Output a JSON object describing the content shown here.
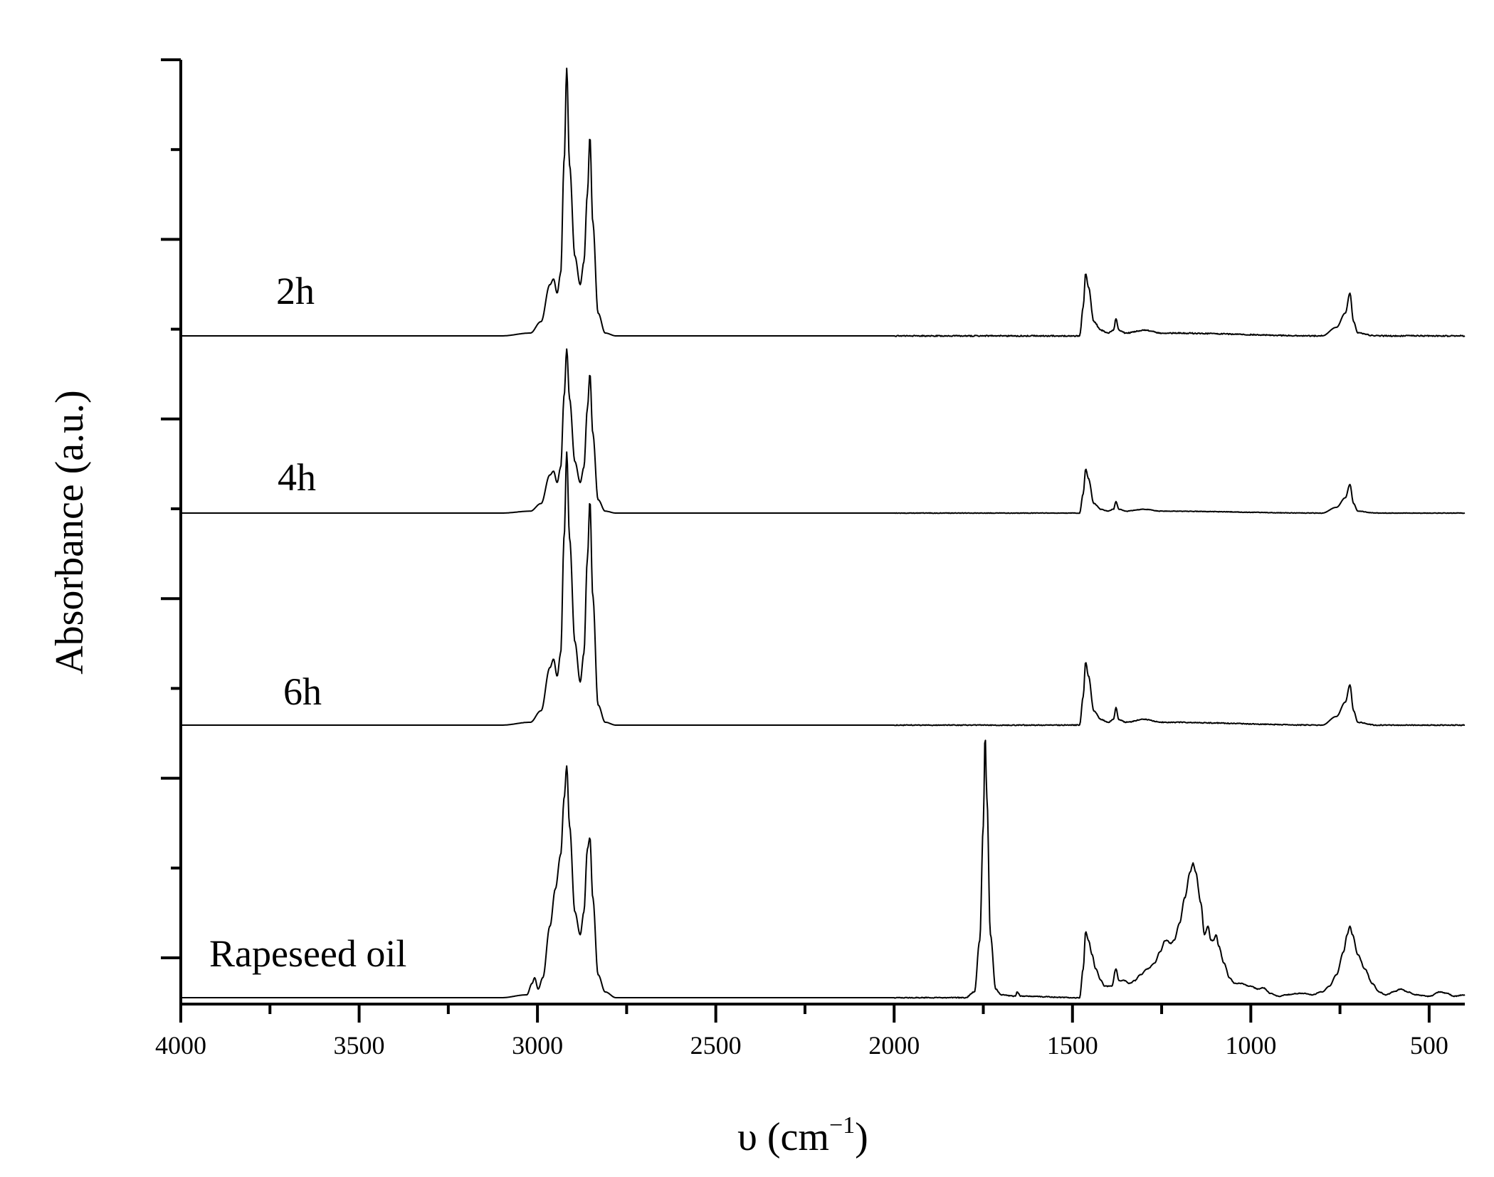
{
  "chart_data": {
    "type": "line",
    "title": "",
    "xlabel": "υ (cm",
    "xlabel_superscript": "−1",
    "xlabel_suffix": ")",
    "ylabel": "Absorbance (a.u.)",
    "xlim": [
      4000,
      400
    ],
    "x_reversed": true,
    "x_ticks": [
      4000,
      3500,
      3000,
      2500,
      2000,
      1500,
      1000,
      500
    ],
    "y_ticks_count": 11,
    "y_tick_labels_shown": false,
    "stacked_offset": true,
    "series": [
      {
        "name": "2h",
        "baseline": 0,
        "noise": 0.004,
        "points": [
          [
            4000,
            0
          ],
          [
            3100,
            0
          ],
          [
            3020,
            0.01
          ],
          [
            2990,
            0.05
          ],
          [
            2965,
            0.18
          ],
          [
            2955,
            0.2
          ],
          [
            2945,
            0.15
          ],
          [
            2935,
            0.22
          ],
          [
            2925,
            0.62
          ],
          [
            2918,
            0.94
          ],
          [
            2910,
            0.6
          ],
          [
            2895,
            0.28
          ],
          [
            2880,
            0.18
          ],
          [
            2870,
            0.26
          ],
          [
            2860,
            0.5
          ],
          [
            2853,
            0.7
          ],
          [
            2845,
            0.4
          ],
          [
            2830,
            0.08
          ],
          [
            2810,
            0.01
          ],
          [
            2780,
            0
          ],
          [
            1480,
            0
          ],
          [
            1470,
            0.1
          ],
          [
            1463,
            0.22
          ],
          [
            1455,
            0.17
          ],
          [
            1440,
            0.05
          ],
          [
            1420,
            0.02
          ],
          [
            1400,
            0.01
          ],
          [
            1385,
            0.02
          ],
          [
            1378,
            0.06
          ],
          [
            1370,
            0.02
          ],
          [
            1350,
            0.01
          ],
          [
            1300,
            0.02
          ],
          [
            1250,
            0.01
          ],
          [
            800,
            0
          ],
          [
            760,
            0.03
          ],
          [
            735,
            0.08
          ],
          [
            722,
            0.15
          ],
          [
            712,
            0.05
          ],
          [
            700,
            0.01
          ],
          [
            650,
            0
          ],
          [
            400,
            0
          ]
        ]
      },
      {
        "name": "4h",
        "baseline": 0,
        "noise": 0.003,
        "points": [
          [
            4000,
            0
          ],
          [
            3100,
            0
          ],
          [
            3020,
            0.01
          ],
          [
            2990,
            0.05
          ],
          [
            2965,
            0.2
          ],
          [
            2955,
            0.22
          ],
          [
            2945,
            0.16
          ],
          [
            2935,
            0.24
          ],
          [
            2925,
            0.62
          ],
          [
            2918,
            0.86
          ],
          [
            2910,
            0.6
          ],
          [
            2895,
            0.27
          ],
          [
            2880,
            0.16
          ],
          [
            2870,
            0.24
          ],
          [
            2860,
            0.55
          ],
          [
            2853,
            0.73
          ],
          [
            2845,
            0.42
          ],
          [
            2830,
            0.07
          ],
          [
            2810,
            0.01
          ],
          [
            2780,
            0
          ],
          [
            1480,
            0
          ],
          [
            1470,
            0.1
          ],
          [
            1463,
            0.23
          ],
          [
            1455,
            0.18
          ],
          [
            1440,
            0.05
          ],
          [
            1420,
            0.02
          ],
          [
            1400,
            0.01
          ],
          [
            1385,
            0.02
          ],
          [
            1378,
            0.06
          ],
          [
            1370,
            0.02
          ],
          [
            1350,
            0.01
          ],
          [
            1300,
            0.02
          ],
          [
            1250,
            0.01
          ],
          [
            800,
            0
          ],
          [
            760,
            0.03
          ],
          [
            735,
            0.08
          ],
          [
            722,
            0.15
          ],
          [
            712,
            0.05
          ],
          [
            700,
            0.01
          ],
          [
            650,
            0
          ],
          [
            400,
            0
          ]
        ]
      },
      {
        "name": "6h",
        "baseline": 0,
        "noise": 0.003,
        "points": [
          [
            4000,
            0
          ],
          [
            3100,
            0
          ],
          [
            3020,
            0.01
          ],
          [
            2990,
            0.05
          ],
          [
            2965,
            0.2
          ],
          [
            2955,
            0.23
          ],
          [
            2945,
            0.17
          ],
          [
            2935,
            0.25
          ],
          [
            2925,
            0.66
          ],
          [
            2918,
            0.95
          ],
          [
            2910,
            0.65
          ],
          [
            2895,
            0.29
          ],
          [
            2880,
            0.15
          ],
          [
            2870,
            0.25
          ],
          [
            2860,
            0.58
          ],
          [
            2853,
            0.78
          ],
          [
            2845,
            0.45
          ],
          [
            2830,
            0.07
          ],
          [
            2810,
            0.01
          ],
          [
            2780,
            0
          ],
          [
            1480,
            0
          ],
          [
            1470,
            0.1
          ],
          [
            1463,
            0.22
          ],
          [
            1455,
            0.17
          ],
          [
            1440,
            0.05
          ],
          [
            1420,
            0.02
          ],
          [
            1400,
            0.01
          ],
          [
            1385,
            0.02
          ],
          [
            1378,
            0.06
          ],
          [
            1370,
            0.02
          ],
          [
            1350,
            0.01
          ],
          [
            1300,
            0.02
          ],
          [
            1250,
            0.01
          ],
          [
            800,
            0
          ],
          [
            760,
            0.03
          ],
          [
            735,
            0.08
          ],
          [
            722,
            0.14
          ],
          [
            712,
            0.05
          ],
          [
            700,
            0.01
          ],
          [
            650,
            0
          ],
          [
            400,
            0
          ]
        ]
      },
      {
        "name": "Rapeseed oil",
        "baseline": 0,
        "noise": 0.003,
        "points": [
          [
            4000,
            0
          ],
          [
            3100,
            0
          ],
          [
            3030,
            0.01
          ],
          [
            3015,
            0.05
          ],
          [
            3008,
            0.07
          ],
          [
            2998,
            0.03
          ],
          [
            2985,
            0.07
          ],
          [
            2965,
            0.25
          ],
          [
            2950,
            0.38
          ],
          [
            2935,
            0.5
          ],
          [
            2925,
            0.7
          ],
          [
            2918,
            0.81
          ],
          [
            2910,
            0.6
          ],
          [
            2895,
            0.3
          ],
          [
            2880,
            0.22
          ],
          [
            2870,
            0.3
          ],
          [
            2860,
            0.52
          ],
          [
            2853,
            0.56
          ],
          [
            2845,
            0.35
          ],
          [
            2830,
            0.08
          ],
          [
            2810,
            0.02
          ],
          [
            2780,
            0
          ],
          [
            1800,
            0
          ],
          [
            1775,
            0.02
          ],
          [
            1760,
            0.2
          ],
          [
            1750,
            0.6
          ],
          [
            1745,
            0.92
          ],
          [
            1740,
            0.7
          ],
          [
            1730,
            0.22
          ],
          [
            1715,
            0.03
          ],
          [
            1700,
            0.01
          ],
          [
            1660,
            0.005
          ],
          [
            1655,
            0.02
          ],
          [
            1645,
            0.005
          ],
          [
            1480,
            0
          ],
          [
            1470,
            0.1
          ],
          [
            1463,
            0.23
          ],
          [
            1455,
            0.2
          ],
          [
            1445,
            0.15
          ],
          [
            1435,
            0.1
          ],
          [
            1420,
            0.06
          ],
          [
            1410,
            0.04
          ],
          [
            1400,
            0.04
          ],
          [
            1390,
            0.04
          ],
          [
            1378,
            0.1
          ],
          [
            1370,
            0.06
          ],
          [
            1355,
            0.06
          ],
          [
            1340,
            0.05
          ],
          [
            1325,
            0.06
          ],
          [
            1310,
            0.08
          ],
          [
            1290,
            0.1
          ],
          [
            1270,
            0.12
          ],
          [
            1255,
            0.16
          ],
          [
            1240,
            0.2
          ],
          [
            1235,
            0.2
          ],
          [
            1225,
            0.19
          ],
          [
            1215,
            0.2
          ],
          [
            1200,
            0.26
          ],
          [
            1185,
            0.35
          ],
          [
            1170,
            0.44
          ],
          [
            1162,
            0.47
          ],
          [
            1155,
            0.44
          ],
          [
            1140,
            0.33
          ],
          [
            1130,
            0.22
          ],
          [
            1120,
            0.25
          ],
          [
            1112,
            0.2
          ],
          [
            1105,
            0.2
          ],
          [
            1097,
            0.22
          ],
          [
            1090,
            0.18
          ],
          [
            1075,
            0.12
          ],
          [
            1060,
            0.07
          ],
          [
            1045,
            0.05
          ],
          [
            1030,
            0.05
          ],
          [
            1000,
            0.04
          ],
          [
            980,
            0.03
          ],
          [
            965,
            0.035
          ],
          [
            945,
            0.015
          ],
          [
            920,
            0.005
          ],
          [
            900,
            0.01
          ],
          [
            870,
            0.015
          ],
          [
            850,
            0.015
          ],
          [
            830,
            0.01
          ],
          [
            800,
            0.02
          ],
          [
            780,
            0.04
          ],
          [
            760,
            0.08
          ],
          [
            740,
            0.16
          ],
          [
            730,
            0.22
          ],
          [
            722,
            0.25
          ],
          [
            715,
            0.22
          ],
          [
            700,
            0.15
          ],
          [
            680,
            0.1
          ],
          [
            660,
            0.05
          ],
          [
            640,
            0.02
          ],
          [
            620,
            0.01
          ],
          [
            600,
            0.02
          ],
          [
            580,
            0.03
          ],
          [
            560,
            0.02
          ],
          [
            540,
            0.01
          ],
          [
            500,
            0.005
          ],
          [
            470,
            0.02
          ],
          [
            450,
            0.015
          ],
          [
            430,
            0.005
          ],
          [
            400,
            0.01
          ]
        ]
      }
    ]
  }
}
